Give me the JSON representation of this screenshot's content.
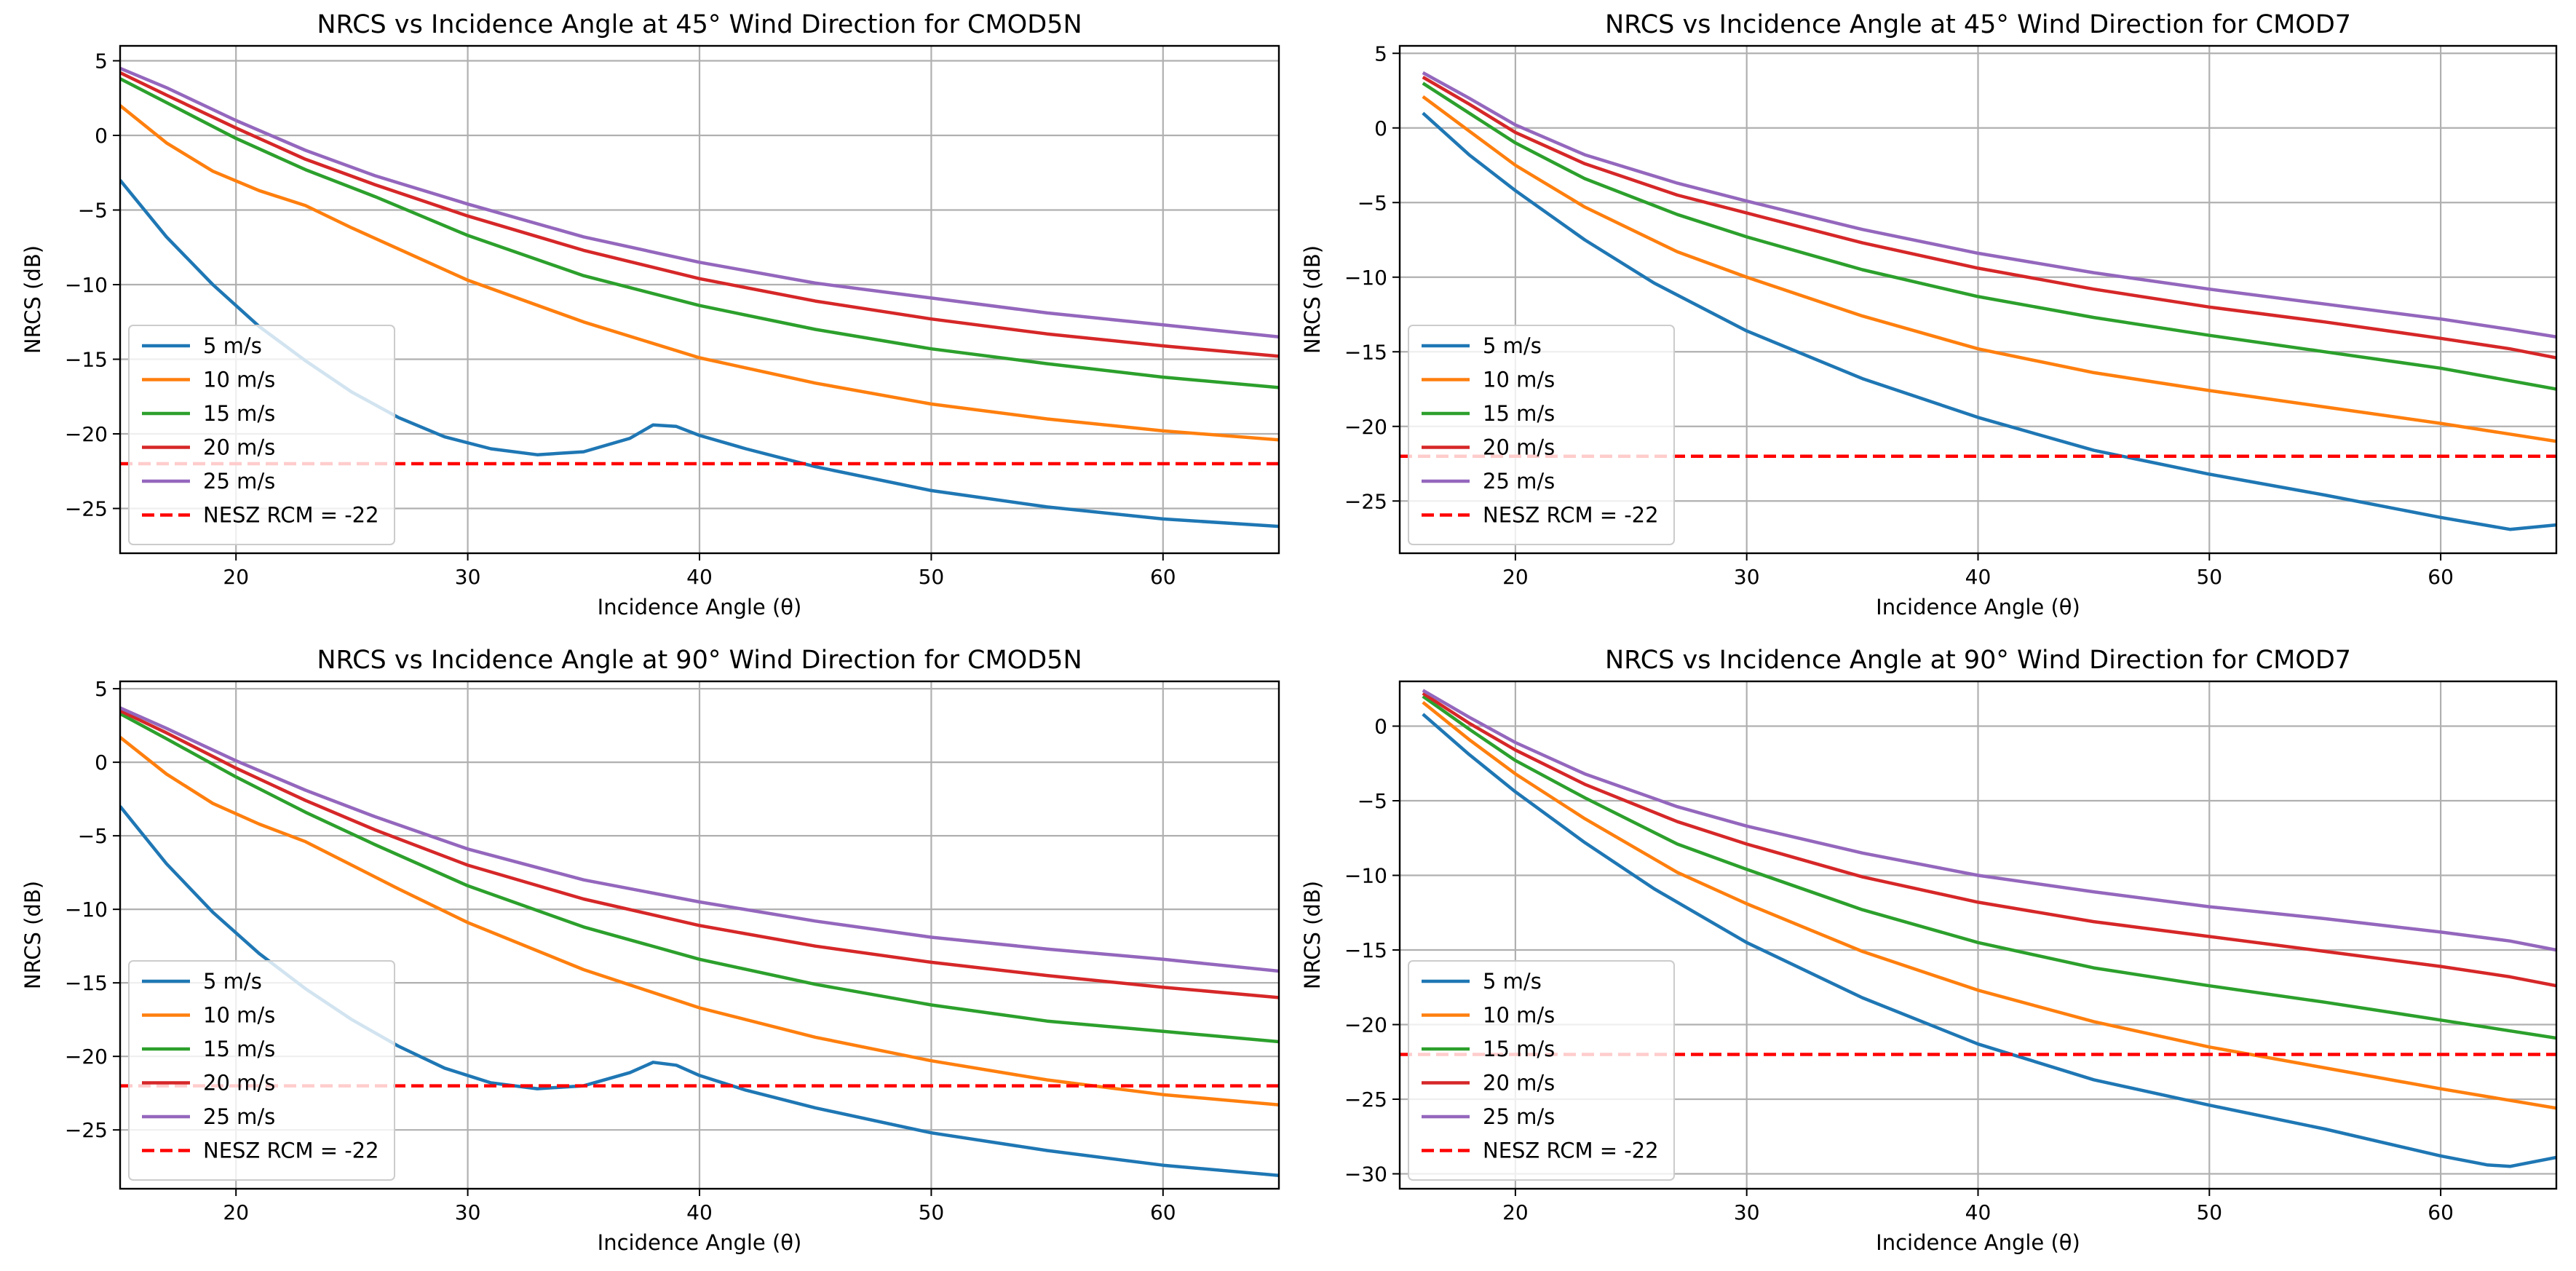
{
  "chart_data": [
    {
      "type": "line",
      "title": "NRCS vs Incidence Angle at 45° Wind Direction for CMOD5N",
      "xlabel": "Incidence Angle (θ)",
      "ylabel": "NRCS (dB)",
      "xlim": [
        15,
        65
      ],
      "ylim": [
        -28,
        6
      ],
      "xticks": [
        20,
        30,
        40,
        50,
        60
      ],
      "yticks": [
        5,
        0,
        -5,
        -10,
        -15,
        -20,
        -25
      ],
      "grid": true,
      "legend_position": "lower-left",
      "series": [
        {
          "name": "5 m/s",
          "color": "#1f77b4",
          "x": [
            15,
            17,
            19,
            21,
            23,
            25,
            27,
            29,
            31,
            33,
            35,
            37,
            38,
            39,
            40,
            42,
            45,
            50,
            55,
            60,
            65
          ],
          "y": [
            -3,
            -6.8,
            -10,
            -12.8,
            -15.1,
            -17.2,
            -18.9,
            -20.2,
            -21,
            -21.4,
            -21.2,
            -20.3,
            -19.4,
            -19.5,
            -20.1,
            -21,
            -22.2,
            -23.8,
            -24.9,
            -25.7,
            -26.2
          ]
        },
        {
          "name": "10 m/s",
          "color": "#ff7f0e",
          "x": [
            15,
            17,
            19,
            21,
            23,
            25,
            27,
            30,
            35,
            40,
            45,
            50,
            55,
            60,
            65
          ],
          "y": [
            2,
            -0.5,
            -2.4,
            -3.7,
            -4.7,
            -6.2,
            -7.6,
            -9.7,
            -12.5,
            -14.9,
            -16.6,
            -18,
            -19,
            -19.8,
            -20.4
          ]
        },
        {
          "name": "15 m/s",
          "color": "#2ca02c",
          "x": [
            15,
            17,
            20,
            23,
            26,
            30,
            35,
            40,
            45,
            50,
            55,
            60,
            65
          ],
          "y": [
            3.8,
            2.2,
            -0.2,
            -2.3,
            -4.1,
            -6.7,
            -9.4,
            -11.4,
            -13,
            -14.3,
            -15.3,
            -16.2,
            -16.9
          ]
        },
        {
          "name": "20 m/s",
          "color": "#d62728",
          "x": [
            15,
            17,
            20,
            23,
            26,
            30,
            35,
            40,
            45,
            50,
            55,
            60,
            65
          ],
          "y": [
            4.2,
            2.7,
            0.5,
            -1.6,
            -3.3,
            -5.4,
            -7.7,
            -9.6,
            -11.1,
            -12.3,
            -13.3,
            -14.1,
            -14.8
          ]
        },
        {
          "name": "25 m/s",
          "color": "#9467bd",
          "x": [
            15,
            17,
            20,
            23,
            26,
            30,
            35,
            40,
            45,
            50,
            55,
            60,
            65
          ],
          "y": [
            4.5,
            3.2,
            1,
            -1,
            -2.7,
            -4.6,
            -6.8,
            -8.5,
            -9.9,
            -10.9,
            -11.9,
            -12.7,
            -13.5
          ]
        },
        {
          "name": "NESZ RCM = -22",
          "color": "#ff0000",
          "dashed": true,
          "x": [
            15,
            65
          ],
          "y": [
            -22,
            -22
          ]
        }
      ]
    },
    {
      "type": "line",
      "title": "NRCS vs Incidence Angle at 45° Wind Direction for CMOD7",
      "xlabel": "Incidence Angle (θ)",
      "ylabel": "NRCS (dB)",
      "xlim": [
        15,
        65
      ],
      "ylim": [
        -28.5,
        5.5
      ],
      "xticks": [
        20,
        30,
        40,
        50,
        60
      ],
      "yticks": [
        5,
        0,
        -5,
        -10,
        -15,
        -20,
        -25
      ],
      "grid": true,
      "legend_position": "lower-left",
      "series": [
        {
          "name": "5 m/s",
          "color": "#1f77b4",
          "x": [
            16,
            18,
            20,
            23,
            26,
            30,
            35,
            40,
            45,
            50,
            55,
            60,
            63,
            65
          ],
          "y": [
            1,
            -1.8,
            -4.2,
            -7.5,
            -10.4,
            -13.6,
            -16.8,
            -19.4,
            -21.6,
            -23.2,
            -24.6,
            -26.1,
            -26.9,
            -26.6
          ]
        },
        {
          "name": "10 m/s",
          "color": "#ff7f0e",
          "x": [
            16,
            18,
            20,
            23,
            27,
            30,
            35,
            40,
            45,
            50,
            55,
            60,
            65
          ],
          "y": [
            2.1,
            -0.2,
            -2.5,
            -5.3,
            -8.3,
            -10,
            -12.6,
            -14.8,
            -16.4,
            -17.6,
            -18.7,
            -19.8,
            -21
          ]
        },
        {
          "name": "15 m/s",
          "color": "#2ca02c",
          "x": [
            16,
            18,
            20,
            23,
            27,
            30,
            35,
            40,
            45,
            50,
            55,
            60,
            65
          ],
          "y": [
            3,
            1,
            -1,
            -3.4,
            -5.8,
            -7.3,
            -9.5,
            -11.3,
            -12.7,
            -13.9,
            -15,
            -16.1,
            -17.5
          ]
        },
        {
          "name": "20 m/s",
          "color": "#d62728",
          "x": [
            16,
            18,
            20,
            23,
            27,
            30,
            35,
            40,
            45,
            50,
            55,
            60,
            63,
            65
          ],
          "y": [
            3.4,
            1.6,
            -0.3,
            -2.4,
            -4.5,
            -5.7,
            -7.7,
            -9.4,
            -10.8,
            -12,
            -13,
            -14.1,
            -14.8,
            -15.4
          ]
        },
        {
          "name": "25 m/s",
          "color": "#9467bd",
          "x": [
            16,
            18,
            20,
            23,
            27,
            30,
            35,
            40,
            45,
            50,
            55,
            60,
            63,
            65
          ],
          "y": [
            3.7,
            2,
            0.2,
            -1.8,
            -3.7,
            -4.9,
            -6.8,
            -8.4,
            -9.7,
            -10.8,
            -11.8,
            -12.8,
            -13.5,
            -14
          ]
        },
        {
          "name": "NESZ RCM = -22",
          "color": "#ff0000",
          "dashed": true,
          "x": [
            15,
            65
          ],
          "y": [
            -22,
            -22
          ]
        }
      ]
    },
    {
      "type": "line",
      "title": "NRCS vs Incidence Angle at 90° Wind Direction for CMOD5N",
      "xlabel": "Incidence Angle (θ)",
      "ylabel": "NRCS (dB)",
      "xlim": [
        15,
        65
      ],
      "ylim": [
        -29,
        5.5
      ],
      "xticks": [
        20,
        30,
        40,
        50,
        60
      ],
      "yticks": [
        5,
        0,
        -5,
        -10,
        -15,
        -20,
        -25
      ],
      "grid": true,
      "legend_position": "lower-left",
      "series": [
        {
          "name": "5 m/s",
          "color": "#1f77b4",
          "x": [
            15,
            17,
            19,
            21,
            23,
            25,
            27,
            29,
            31,
            33,
            35,
            37,
            38,
            39,
            40,
            42,
            45,
            50,
            55,
            60,
            65
          ],
          "y": [
            -3,
            -6.9,
            -10.2,
            -13,
            -15.4,
            -17.5,
            -19.3,
            -20.8,
            -21.8,
            -22.2,
            -22,
            -21.1,
            -20.4,
            -20.6,
            -21.3,
            -22.3,
            -23.5,
            -25.2,
            -26.4,
            -27.4,
            -28.1
          ]
        },
        {
          "name": "10 m/s",
          "color": "#ff7f0e",
          "x": [
            15,
            17,
            19,
            21,
            23,
            25,
            27,
            30,
            35,
            40,
            45,
            50,
            55,
            60,
            65
          ],
          "y": [
            1.7,
            -0.8,
            -2.8,
            -4.2,
            -5.4,
            -7,
            -8.6,
            -10.9,
            -14.1,
            -16.7,
            -18.7,
            -20.3,
            -21.6,
            -22.6,
            -23.3
          ]
        },
        {
          "name": "15 m/s",
          "color": "#2ca02c",
          "x": [
            15,
            17,
            20,
            23,
            26,
            30,
            35,
            40,
            45,
            50,
            55,
            60,
            65
          ],
          "y": [
            3.3,
            1.6,
            -1,
            -3.4,
            -5.6,
            -8.4,
            -11.2,
            -13.4,
            -15.1,
            -16.5,
            -17.6,
            -18.3,
            -19
          ]
        },
        {
          "name": "20 m/s",
          "color": "#d62728",
          "x": [
            15,
            17,
            20,
            23,
            26,
            30,
            35,
            40,
            45,
            50,
            55,
            60,
            65
          ],
          "y": [
            3.5,
            2,
            -0.4,
            -2.6,
            -4.6,
            -7,
            -9.3,
            -11.1,
            -12.5,
            -13.6,
            -14.5,
            -15.3,
            -16
          ]
        },
        {
          "name": "25 m/s",
          "color": "#9467bd",
          "x": [
            15,
            17,
            20,
            23,
            26,
            30,
            35,
            40,
            45,
            50,
            55,
            60,
            65
          ],
          "y": [
            3.7,
            2.3,
            0.1,
            -1.9,
            -3.7,
            -5.9,
            -8,
            -9.5,
            -10.8,
            -11.9,
            -12.7,
            -13.4,
            -14.2
          ]
        },
        {
          "name": "NESZ RCM = -22",
          "color": "#ff0000",
          "dashed": true,
          "x": [
            15,
            65
          ],
          "y": [
            -22,
            -22
          ]
        }
      ]
    },
    {
      "type": "line",
      "title": "NRCS vs Incidence Angle at 90° Wind Direction for CMOD7",
      "xlabel": "Incidence Angle (θ)",
      "ylabel": "NRCS (dB)",
      "xlim": [
        15,
        65
      ],
      "ylim": [
        -31,
        3
      ],
      "xticks": [
        20,
        30,
        40,
        50,
        60
      ],
      "yticks": [
        0,
        -5,
        -10,
        -15,
        -20,
        -25,
        -30
      ],
      "grid": true,
      "legend_position": "lower-left",
      "series": [
        {
          "name": "5 m/s",
          "color": "#1f77b4",
          "x": [
            16,
            18,
            20,
            23,
            26,
            30,
            35,
            40,
            45,
            50,
            55,
            60,
            62,
            63,
            65
          ],
          "y": [
            0.8,
            -1.9,
            -4.4,
            -7.8,
            -10.9,
            -14.5,
            -18.2,
            -21.3,
            -23.7,
            -25.4,
            -27,
            -28.8,
            -29.4,
            -29.5,
            -28.9
          ]
        },
        {
          "name": "10 m/s",
          "color": "#ff7f0e",
          "x": [
            16,
            18,
            20,
            23,
            27,
            30,
            35,
            40,
            45,
            50,
            55,
            60,
            65
          ],
          "y": [
            1.6,
            -0.9,
            -3.2,
            -6.2,
            -9.8,
            -11.9,
            -15.1,
            -17.7,
            -19.8,
            -21.5,
            -22.9,
            -24.3,
            -25.6
          ]
        },
        {
          "name": "15 m/s",
          "color": "#2ca02c",
          "x": [
            16,
            18,
            20,
            23,
            27,
            30,
            35,
            40,
            45,
            50,
            55,
            60,
            65
          ],
          "y": [
            2,
            -0.2,
            -2.3,
            -4.8,
            -7.9,
            -9.6,
            -12.3,
            -14.5,
            -16.2,
            -17.4,
            -18.5,
            -19.7,
            -20.9
          ]
        },
        {
          "name": "20 m/s",
          "color": "#d62728",
          "x": [
            16,
            18,
            20,
            23,
            27,
            30,
            35,
            40,
            45,
            50,
            55,
            60,
            63,
            65
          ],
          "y": [
            2.2,
            0.2,
            -1.6,
            -3.9,
            -6.4,
            -7.9,
            -10.1,
            -11.8,
            -13.1,
            -14.1,
            -15.1,
            -16.1,
            -16.8,
            -17.4
          ]
        },
        {
          "name": "25 m/s",
          "color": "#9467bd",
          "x": [
            16,
            18,
            20,
            23,
            27,
            30,
            35,
            40,
            45,
            50,
            55,
            60,
            63,
            65
          ],
          "y": [
            2.4,
            0.6,
            -1.1,
            -3.2,
            -5.4,
            -6.7,
            -8.5,
            -10,
            -11.1,
            -12.1,
            -12.9,
            -13.8,
            -14.4,
            -15
          ]
        },
        {
          "name": "NESZ RCM = -22",
          "color": "#ff0000",
          "dashed": true,
          "x": [
            15,
            65
          ],
          "y": [
            -22,
            -22
          ]
        }
      ]
    }
  ]
}
